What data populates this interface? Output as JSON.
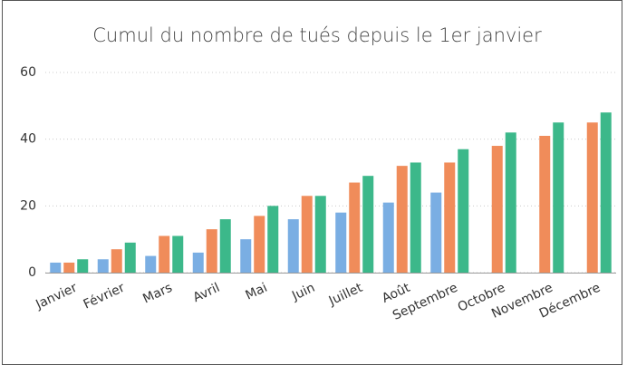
{
  "chart_data": {
    "type": "bar",
    "title": "Cumul du nombre de tués depuis le 1er janvier",
    "categories": [
      "Janvier",
      "Février",
      "Mars",
      "Avril",
      "Mai",
      "Juin",
      "Juillet",
      "Août",
      "Septembre",
      "Octobre",
      "Novembre",
      "Décembre"
    ],
    "series": [
      {
        "color": "#7aaee3",
        "values": [
          3,
          4,
          5,
          6,
          10,
          16,
          18,
          21,
          24,
          null,
          null,
          null
        ]
      },
      {
        "color": "#f08c5a",
        "values": [
          3,
          7,
          11,
          13,
          17,
          23,
          27,
          32,
          33,
          38,
          41,
          45
        ]
      },
      {
        "color": "#3cb88a",
        "values": [
          4,
          9,
          11,
          16,
          20,
          23,
          29,
          33,
          37,
          42,
          45,
          48
        ]
      }
    ],
    "ylim": [
      0,
      60
    ],
    "yticks": [
      0,
      20,
      40,
      60
    ],
    "grid": true
  }
}
